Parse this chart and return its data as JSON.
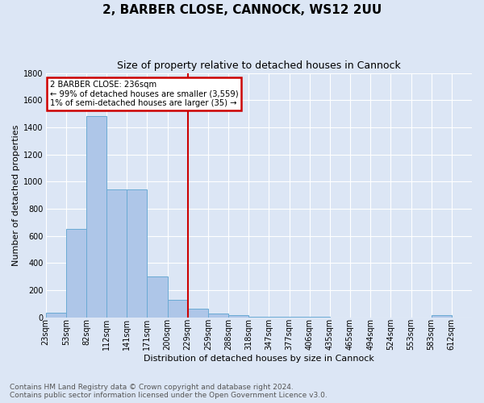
{
  "title": "2, BARBER CLOSE, CANNOCK, WS12 2UU",
  "subtitle": "Size of property relative to detached houses in Cannock",
  "xlabel": "Distribution of detached houses by size in Cannock",
  "ylabel": "Number of detached properties",
  "footnote1": "Contains HM Land Registry data © Crown copyright and database right 2024.",
  "footnote2": "Contains public sector information licensed under the Open Government Licence v3.0.",
  "bin_labels": [
    "23sqm",
    "53sqm",
    "82sqm",
    "112sqm",
    "141sqm",
    "171sqm",
    "200sqm",
    "229sqm",
    "259sqm",
    "288sqm",
    "318sqm",
    "347sqm",
    "377sqm",
    "406sqm",
    "435sqm",
    "465sqm",
    "494sqm",
    "524sqm",
    "553sqm",
    "583sqm",
    "612sqm"
  ],
  "counts": [
    35,
    650,
    1480,
    940,
    940,
    300,
    130,
    65,
    25,
    15,
    5,
    5,
    5,
    5,
    0,
    0,
    0,
    0,
    0,
    15,
    0
  ],
  "bar_color": "#aec6e8",
  "bar_edge_color": "#6aaad4",
  "vline_index": 7,
  "vline_color": "#cc0000",
  "annotation_text_line1": "2 BARBER CLOSE: 236sqm",
  "annotation_text_line2": "← 99% of detached houses are smaller (3,559)",
  "annotation_text_line3": "1% of semi-detached houses are larger (35) →",
  "annotation_box_color": "#ffffff",
  "annotation_box_edge_color": "#cc0000",
  "background_color": "#dce6f5",
  "plot_bg_color": "#dce6f5",
  "ylim": [
    0,
    1800
  ],
  "yticks": [
    0,
    200,
    400,
    600,
    800,
    1000,
    1200,
    1400,
    1600,
    1800
  ],
  "grid_color": "#ffffff",
  "title_fontsize": 11,
  "subtitle_fontsize": 9,
  "ylabel_fontsize": 8,
  "xlabel_fontsize": 8,
  "tick_fontsize": 7,
  "footnote_fontsize": 6.5
}
